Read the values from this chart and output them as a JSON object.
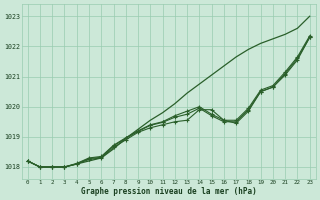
{
  "x": [
    0,
    1,
    2,
    3,
    4,
    5,
    6,
    7,
    8,
    9,
    10,
    11,
    12,
    13,
    14,
    15,
    16,
    17,
    18,
    19,
    20,
    21,
    22,
    23
  ],
  "series_no_marker": [
    [
      1018.2,
      1018.0,
      1018.0,
      1018.0,
      1018.1,
      1018.2,
      1018.3,
      1018.6,
      1018.95,
      1019.25,
      1019.55,
      1019.8,
      1020.1,
      1020.45,
      1020.75,
      1021.05,
      1021.35,
      1021.65,
      1021.9,
      1022.1,
      1022.25,
      1022.4,
      1022.6,
      1023.0
    ]
  ],
  "series_with_marker": [
    [
      1018.2,
      1018.0,
      1018.0,
      1018.0,
      1018.1,
      1018.25,
      1018.3,
      1018.65,
      1018.9,
      1019.15,
      1019.3,
      1019.4,
      1019.5,
      1019.55,
      1019.9,
      1019.9,
      1019.55,
      1019.45,
      1019.85,
      1020.5,
      1020.65,
      1021.05,
      1021.55,
      1022.3
    ],
    [
      1018.2,
      1018.0,
      1018.0,
      1018.0,
      1018.1,
      1018.28,
      1018.32,
      1018.7,
      1018.95,
      1019.18,
      1019.38,
      1019.48,
      1019.65,
      1019.75,
      1019.95,
      1019.7,
      1019.5,
      1019.5,
      1019.9,
      1020.5,
      1020.65,
      1021.1,
      1021.6,
      1022.3
    ],
    [
      1018.2,
      1018.0,
      1018.0,
      1018.0,
      1018.12,
      1018.3,
      1018.35,
      1018.72,
      1018.97,
      1019.2,
      1019.4,
      1019.5,
      1019.7,
      1019.85,
      1020.0,
      1019.75,
      1019.55,
      1019.55,
      1019.95,
      1020.55,
      1020.7,
      1021.15,
      1021.65,
      1022.35
    ]
  ],
  "line_color": "#2a5f2a",
  "bg_color": "#cce8d8",
  "grid_color": "#99ccb0",
  "text_color": "#1a4020",
  "xlabel": "Graphe pression niveau de la mer (hPa)",
  "ylim": [
    1017.6,
    1023.4
  ],
  "xlim": [
    -0.5,
    23.5
  ],
  "yticks": [
    1018,
    1019,
    1020,
    1021,
    1022,
    1023
  ],
  "xticks": [
    0,
    1,
    2,
    3,
    4,
    5,
    6,
    7,
    8,
    9,
    10,
    11,
    12,
    13,
    14,
    15,
    16,
    17,
    18,
    19,
    20,
    21,
    22,
    23
  ]
}
